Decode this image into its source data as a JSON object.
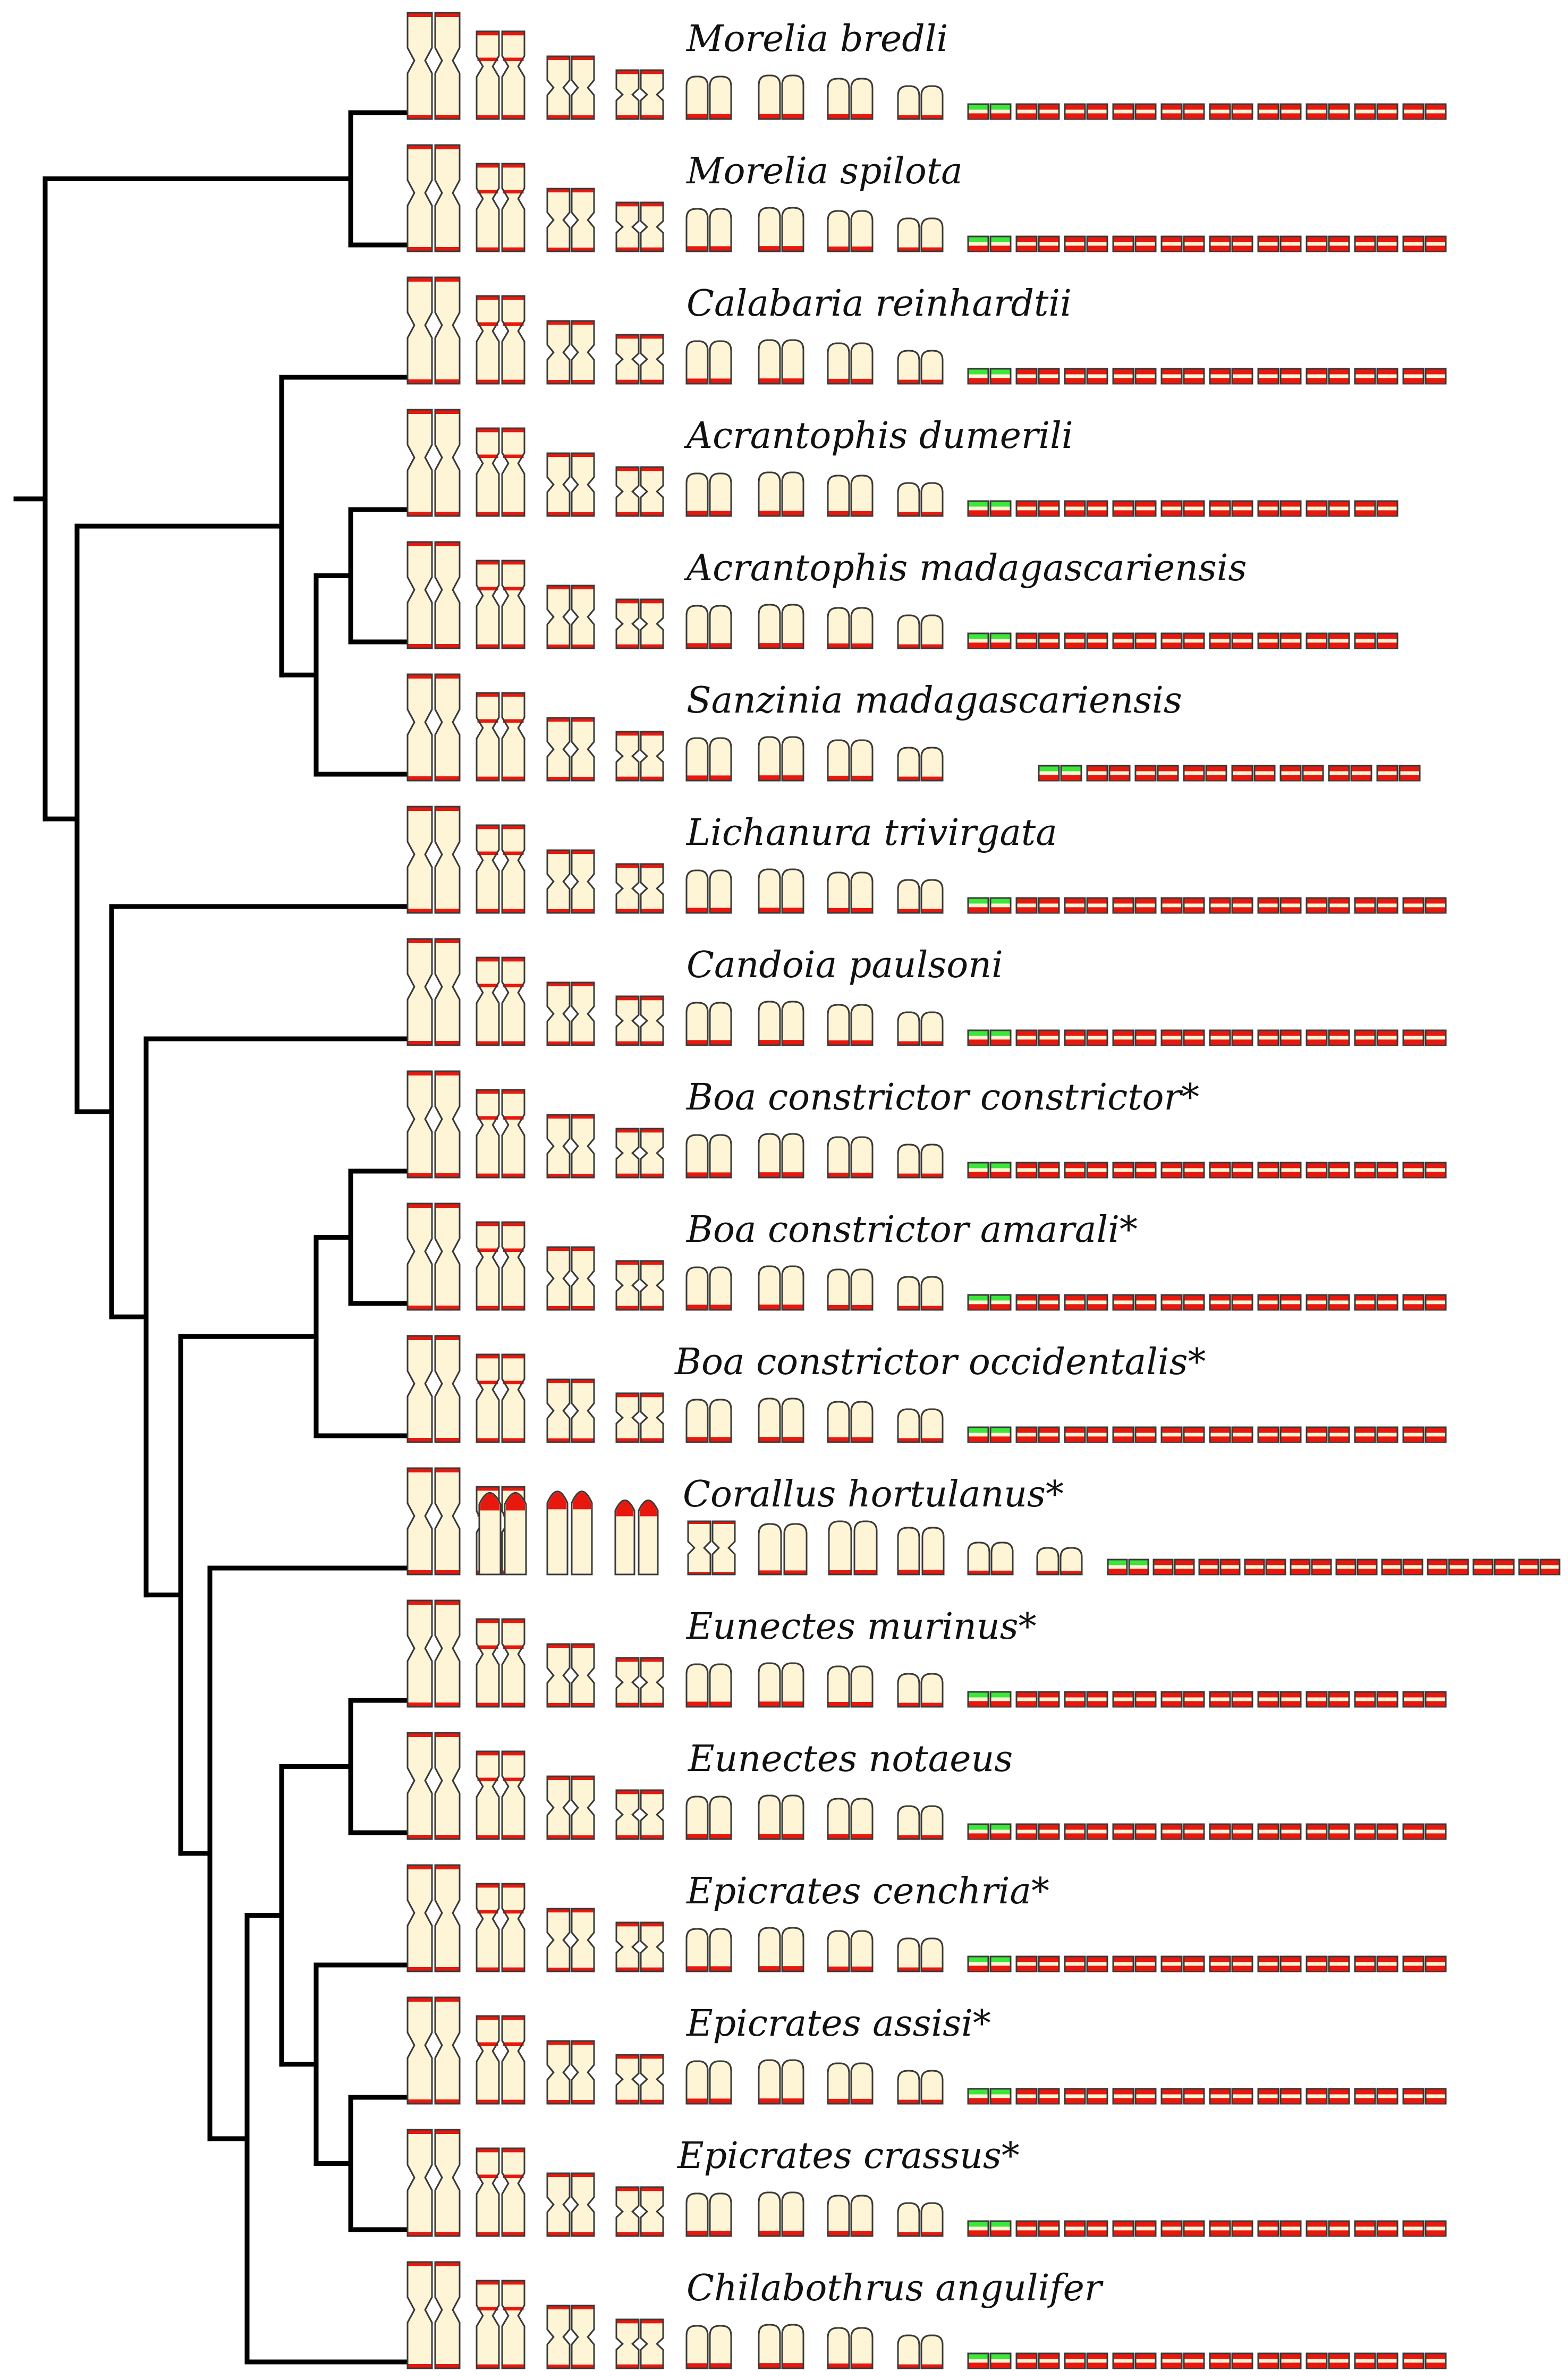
{
  "figure": {
    "title": "",
    "colors": {
      "tree": "#000000",
      "chromosome_fill": "#fdf5d6",
      "chromosome_outline": "#3a3a3a",
      "band_red": "#e8180e",
      "band_green": "#3ce63a"
    },
    "species": [
      {
        "name": "Morelia bredli",
        "macro_extra_shape": "none",
        "micro_count": 10
      },
      {
        "name": "Morelia spilota",
        "macro_extra_shape": "none",
        "micro_count": 10
      },
      {
        "name": "Calabaria reinhardtii",
        "macro_extra_shape": "none",
        "micro_count": 10
      },
      {
        "name": "Acrantophis dumerili",
        "macro_extra_shape": "none",
        "micro_count": 9
      },
      {
        "name": "Acrantophis madagascariensis",
        "macro_extra_shape": "none",
        "micro_count": 9
      },
      {
        "name": "Sanzinia madagascariensis",
        "macro_extra_shape": "none",
        "micro_count": 8
      },
      {
        "name": "Lichanura trivirgata",
        "macro_extra_shape": "none",
        "micro_count": 10
      },
      {
        "name": "Candoia paulsoni",
        "macro_extra_shape": "none",
        "micro_count": 10
      },
      {
        "name": "Boa constrictor constrictor*",
        "macro_extra_shape": "none",
        "micro_count": 10
      },
      {
        "name": "Boa constrictor amarali*",
        "macro_extra_shape": "none",
        "micro_count": 10
      },
      {
        "name": "Boa constrictor occidentalis*",
        "macro_extra_shape": "none",
        "micro_count": 10
      },
      {
        "name": "Corallus hortulanus*",
        "macro_extra_shape": "acrocentric",
        "micro_count": 9
      },
      {
        "name": "Eunectes murinus*",
        "macro_extra_shape": "none",
        "micro_count": 10
      },
      {
        "name": "Eunectes notaeus",
        "macro_extra_shape": "none",
        "micro_count": 10
      },
      {
        "name": "Epicrates cenchria*",
        "macro_extra_shape": "none",
        "micro_count": 10
      },
      {
        "name": "Epicrates assisi*",
        "macro_extra_shape": "none",
        "micro_count": 10
      },
      {
        "name": "Epicrates crassus*",
        "macro_extra_shape": "none",
        "micro_count": 10
      },
      {
        "name": "Chilabothrus angulifer",
        "macro_extra_shape": "none",
        "micro_count": 10
      }
    ]
  }
}
